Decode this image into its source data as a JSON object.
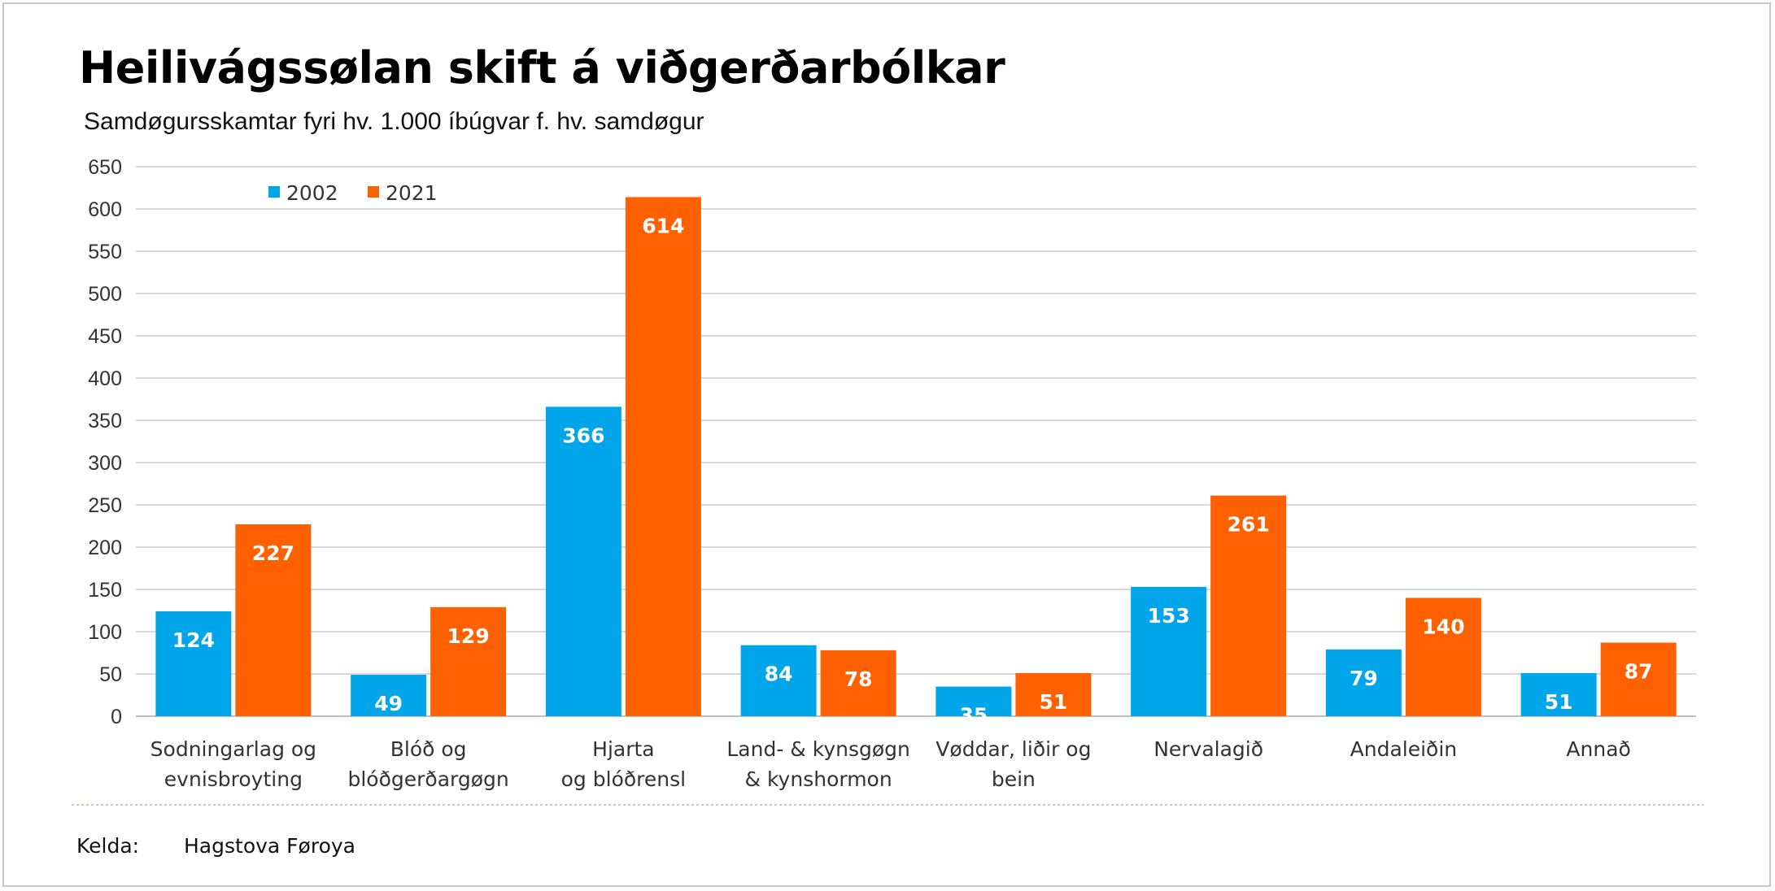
{
  "chart_data": {
    "type": "bar",
    "title": "Heilivágssølan skift á viðgerðarbólkar",
    "subtitle": "Samdøgursskamtar fyri hv. 1.000 íbúgvar f. hv. samdøgur",
    "categories": [
      [
        "Sodningarlag og",
        "evnisbroyting"
      ],
      [
        "Blóð og",
        "blóðgerðargøgn"
      ],
      [
        "Hjarta",
        "og blóðrensl"
      ],
      [
        "Land- & kynsgøgn",
        "& kynshormon"
      ],
      [
        "Vøddar, liðir og",
        "bein"
      ],
      [
        "Nervalagið"
      ],
      [
        "Andaleiðin"
      ],
      [
        "Annað"
      ]
    ],
    "series": [
      {
        "name": "2002",
        "color": "#00a6e9",
        "values": [
          124,
          49,
          366,
          84,
          35,
          153,
          79,
          51
        ]
      },
      {
        "name": "2021",
        "color": "#ff6000",
        "values": [
          227,
          129,
          614,
          78,
          51,
          261,
          140,
          87
        ]
      }
    ],
    "ylim": [
      0,
      650
    ],
    "yticks": [
      0,
      50,
      100,
      150,
      200,
      250,
      300,
      350,
      400,
      450,
      500,
      550,
      600,
      650
    ],
    "xlabel": "",
    "ylabel": "",
    "grid": true,
    "legend": "top-left"
  },
  "source": {
    "label": "Kelda:",
    "value": "Hagstova Føroya"
  }
}
